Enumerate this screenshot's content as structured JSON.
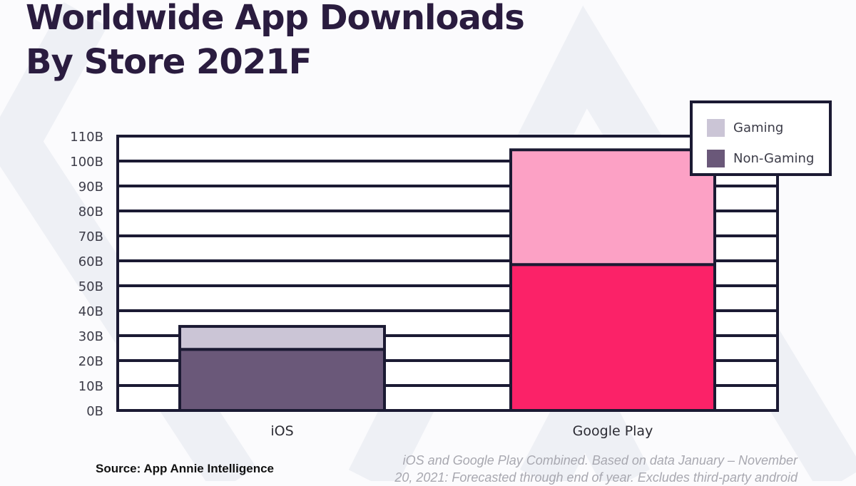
{
  "title_lines": [
    "Worldwide App Downloads",
    "By Store 2021F"
  ],
  "source": "Source: App Annie Intelligence",
  "note_lines": [
    "iOS and Google Play Combined. Based on data January – November",
    "20, 2021: Forecasted through end of year. Excludes third-party android"
  ],
  "colors": {
    "frame": "#1b1a33",
    "ios_gaming": "#cbc5d6",
    "ios_non_gaming": "#6a5879",
    "gp_gaming": "#fca1c5",
    "gp_non_gaming": "#fb2268",
    "title": "#2a1c3f"
  },
  "chart_data": {
    "type": "bar",
    "stacked": true,
    "title": "Worldwide App Downloads By Store 2021F",
    "xlabel": "",
    "ylabel": "",
    "categories": [
      "iOS",
      "Google Play"
    ],
    "series": [
      {
        "name": "Non-Gaming",
        "values": [
          24.5,
          58.5
        ]
      },
      {
        "name": "Gaming",
        "values": [
          9.2,
          46.0
        ]
      }
    ],
    "units": "B",
    "ylim": [
      0,
      110
    ],
    "yticks": [
      0,
      10,
      20,
      30,
      40,
      50,
      60,
      70,
      80,
      90,
      100,
      110
    ],
    "ytick_labels": [
      "0B",
      "10B",
      "20B",
      "30B",
      "40B",
      "50B",
      "60B",
      "70B",
      "80B",
      "90B",
      "100B",
      "110B"
    ],
    "grid": true,
    "legend": {
      "position": "top-right",
      "entries": [
        "Gaming",
        "Non-Gaming"
      ]
    }
  }
}
